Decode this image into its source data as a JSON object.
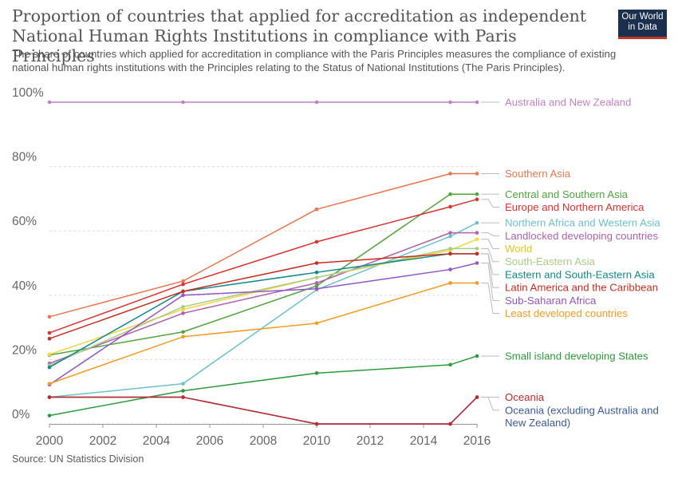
{
  "header": {
    "title": "Proportion of countries that applied for accreditation as independent National Human Rights Institutions in compliance with Paris Principles",
    "subtitle": "The share of countries which applied for accreditation in compliance with the Paris Principles measures the compliance of existing national human rights institutions with the Principles relating to the Status of National Institutions (The Paris Principles).",
    "logo_line1": "Our World",
    "logo_line2": "in Data"
  },
  "footer": {
    "source": "Source: UN Statistics Division"
  },
  "chart_data": {
    "type": "line",
    "x": [
      2000,
      2005,
      2010,
      2015,
      2016
    ],
    "xlim": [
      2000,
      2016
    ],
    "ylim": [
      0,
      100
    ],
    "x_ticks": [
      "2000",
      "2002",
      "2004",
      "2006",
      "2008",
      "2010",
      "2012",
      "2014",
      "2016"
    ],
    "x_tick_values": [
      2000,
      2002,
      2004,
      2006,
      2008,
      2010,
      2012,
      2014,
      2016
    ],
    "y_ticks": [
      "0%",
      "20%",
      "40%",
      "60%",
      "80%",
      "100%"
    ],
    "y_tick_values": [
      0,
      20,
      40,
      60,
      80,
      100
    ],
    "grid": "horizontal dotted",
    "legend": "right, labels at line ends",
    "series": [
      {
        "name": "Australia and New Zealand",
        "color": "#c280c5",
        "values": [
          100,
          100,
          100,
          100,
          100
        ]
      },
      {
        "name": "Southern Asia",
        "color": "#e8764f",
        "values": [
          33.3,
          44.4,
          66.7,
          77.8,
          77.8
        ]
      },
      {
        "name": "Central and Southern Asia",
        "color": "#4fa63a",
        "values": [
          21.4,
          28.6,
          42.9,
          71.4,
          71.4
        ]
      },
      {
        "name": "Europe and Northern America",
        "color": "#db3232",
        "values": [
          28.3,
          43.4,
          56.6,
          67.5,
          69.8
        ]
      },
      {
        "name": "Northern Africa and Western Asia",
        "color": "#6bc1cb",
        "values": [
          8.3,
          12.5,
          41.7,
          58.3,
          62.5
        ]
      },
      {
        "name": "Landlocked developing countries",
        "color": "#b062ad",
        "values": [
          18.8,
          34.4,
          43.8,
          59.4,
          59.4
        ]
      },
      {
        "name": "World",
        "color": "#f3d541",
        "values": [
          21.6,
          35.6,
          45.5,
          54.0,
          57.4
        ]
      },
      {
        "name": "South-Eastern Asia",
        "color": "#a9cc86",
        "values": [
          18.2,
          36.4,
          45.5,
          54.5,
          54.5
        ]
      },
      {
        "name": "Eastern and South-Eastern Asia",
        "color": "#12898c",
        "values": [
          17.6,
          41.2,
          47.1,
          52.9,
          52.9
        ]
      },
      {
        "name": "Latin America and the Caribbean",
        "color": "#c62d1f",
        "values": [
          26.5,
          41.2,
          50.0,
          52.9,
          52.9
        ]
      },
      {
        "name": "Sub-Saharan Africa",
        "color": "#9356c6",
        "values": [
          12.2,
          40.0,
          42.0,
          48.0,
          50.0
        ]
      },
      {
        "name": "Least developed countries",
        "color": "#f29b25",
        "values": [
          12.5,
          27.1,
          31.3,
          43.8,
          43.8
        ]
      },
      {
        "name": "Small island developing States",
        "color": "#2c9a3a",
        "values": [
          2.6,
          10.3,
          15.8,
          18.4,
          21.1
        ]
      },
      {
        "name": "Oceania (excluding Australia and New Zealand)",
        "color": "#3b5b9b",
        "values": [
          8.3,
          8.3,
          0,
          0,
          8.3
        ]
      },
      {
        "name": "Oceania",
        "color": "#bf2a2e",
        "values": [
          8.3,
          8.3,
          0,
          0,
          8.3
        ]
      }
    ],
    "legend_entries": [
      {
        "lines": [
          "Australia and New Zealand"
        ],
        "color": "#c280c5"
      },
      {
        "lines": [
          "Southern Asia"
        ],
        "color": "#e8764f"
      },
      {
        "lines": [
          "Central and Southern Asia"
        ],
        "color": "#4fa63a"
      },
      {
        "lines": [
          "Europe and Northern America"
        ],
        "color": "#db3232"
      },
      {
        "lines": [
          "Northern Africa and Western Asia"
        ],
        "color": "#6bc1cb"
      },
      {
        "lines": [
          "Landlocked developing countries"
        ],
        "color": "#b062ad"
      },
      {
        "lines": [
          "World"
        ],
        "color": "#e8c51a"
      },
      {
        "lines": [
          "South-Eastern Asia"
        ],
        "color": "#a9cc86"
      },
      {
        "lines": [
          "Eastern and South-Eastern Asia"
        ],
        "color": "#12898c"
      },
      {
        "lines": [
          "Latin America and the Caribbean"
        ],
        "color": "#c62d1f"
      },
      {
        "lines": [
          "Sub-Saharan Africa"
        ],
        "color": "#9356c6"
      },
      {
        "lines": [
          "Least developed countries"
        ],
        "color": "#f29b25"
      },
      {
        "lines": [
          "Small island developing States"
        ],
        "color": "#2c9a3a"
      },
      {
        "lines": [
          "Oceania"
        ],
        "color": "#bf2a2e"
      },
      {
        "lines": [
          "Oceania (excluding Australia and",
          "New Zealand)"
        ],
        "color": "#3b5b9b"
      }
    ]
  }
}
